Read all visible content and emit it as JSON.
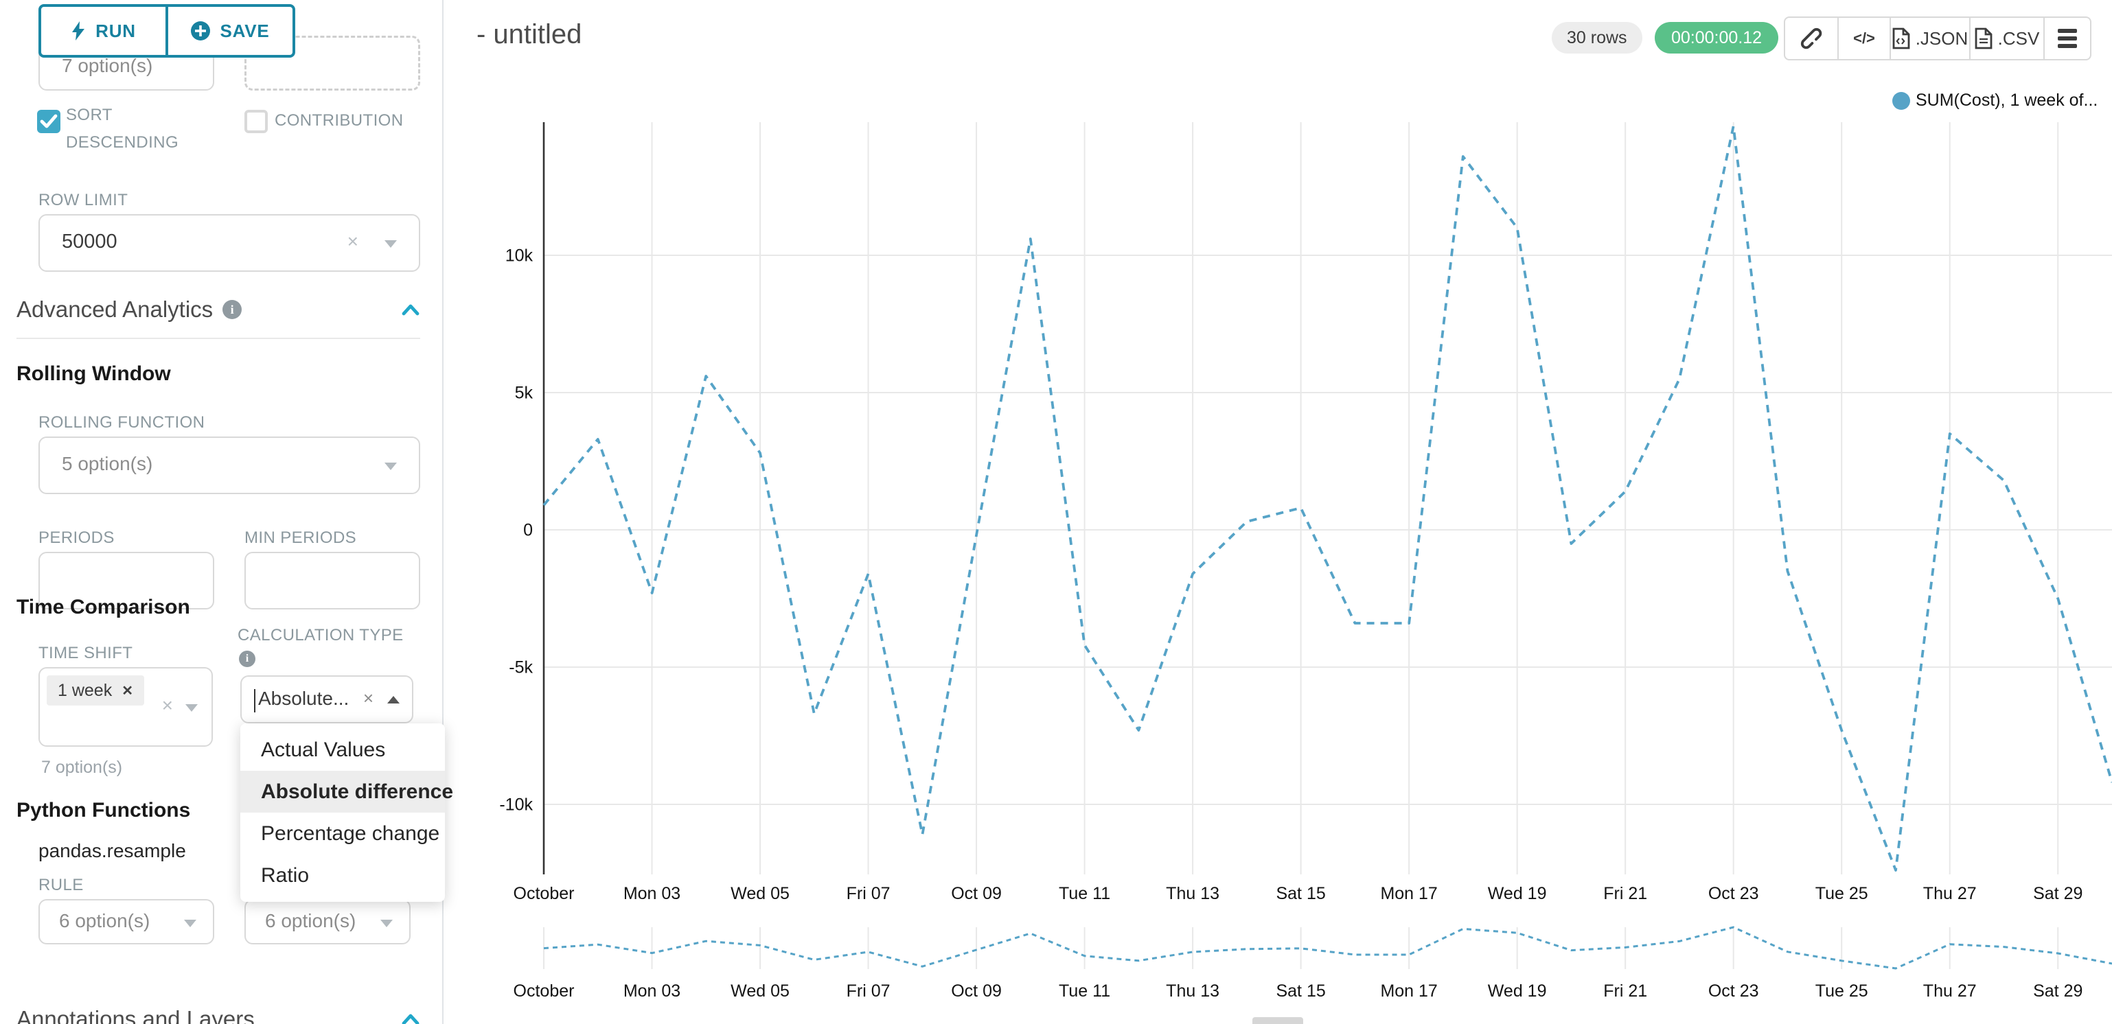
{
  "sidebar": {
    "run_label": "RUN",
    "save_label": "SAVE",
    "clipped_select_value": "7 option(s)",
    "sort_descending_label": "SORT DESCENDING",
    "contribution_label": "CONTRIBUTION",
    "row_limit_label": "ROW LIMIT",
    "row_limit_value": "50000",
    "advanced_analytics_title": "Advanced Analytics",
    "rolling_window_title": "Rolling Window",
    "rolling_function_label": "ROLLING FUNCTION",
    "rolling_function_value": "5 option(s)",
    "periods_label": "PERIODS",
    "min_periods_label": "MIN PERIODS",
    "time_comparison_title": "Time Comparison",
    "time_shift_label": "TIME SHIFT",
    "time_shift_tag": "1 week",
    "time_shift_hint": "7 option(s)",
    "calculation_type_label": "CALCULATION TYPE",
    "calculation_type_value": "Absolute...",
    "dropdown": {
      "options": [
        "Actual Values",
        "Absolute difference",
        "Percentage change",
        "Ratio"
      ],
      "selected": "Absolute difference"
    },
    "python_functions_title": "Python Functions",
    "pandas_resample_label": "pandas.resample",
    "rule_label": "RULE",
    "rule_value": "6 option(s)",
    "resample_method_value": "6 option(s)",
    "annotations_title": "Annotations and Layers"
  },
  "header": {
    "title": "- untitled",
    "rows_badge": "30 rows",
    "timer_badge": "00:00:00.12",
    "json_label": ".JSON",
    "csv_label": ".CSV",
    "code_label": "</>"
  },
  "chart_data": {
    "type": "line",
    "legend": [
      {
        "label": "SUM(Cost), 1 week of...",
        "color": "#56a3c7"
      }
    ],
    "line_style": "dashed",
    "x_tick_labels": [
      "October",
      "Mon 03",
      "Wed 05",
      "Fri 07",
      "Oct 09",
      "Tue 11",
      "Thu 13",
      "Sat 15",
      "Mon 17",
      "Wed 19",
      "Fri 21",
      "Oct 23",
      "Tue 25",
      "Thu 27",
      "Sat 29"
    ],
    "series": [
      {
        "name": "SUM(Cost), 1 week of...",
        "values": [
          900,
          3300,
          -2300,
          5600,
          2800,
          -6700,
          -1600,
          -11100,
          -200,
          10600,
          -4200,
          -7300,
          -1600,
          300,
          800,
          -3400,
          -3400,
          13600,
          11000,
          -500,
          1400,
          5500,
          14700,
          -1500,
          -7300,
          -12400,
          3500,
          1800,
          -2500,
          -9200
        ]
      }
    ],
    "y_ticks": [
      {
        "label": "10k",
        "value": 10000
      },
      {
        "label": "5k",
        "value": 5000
      },
      {
        "label": "0",
        "value": 0
      },
      {
        "label": "-5k",
        "value": -5000
      },
      {
        "label": "-10k",
        "value": -10000
      }
    ],
    "ylim": [
      -12550,
      14850
    ],
    "grid": true,
    "legend_position": "top-right",
    "has_mini_chart": true
  }
}
